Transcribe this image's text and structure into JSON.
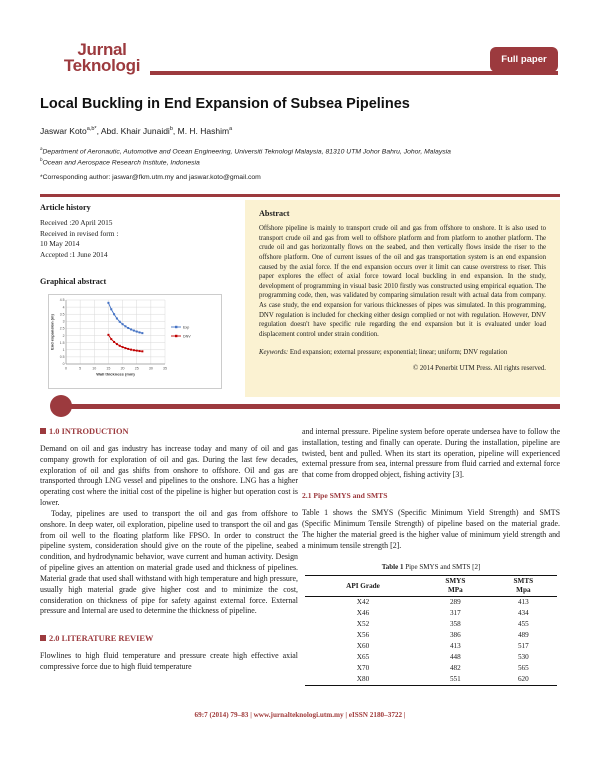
{
  "header": {
    "journal_line1": "Jurnal",
    "journal_line2": "Teknologi",
    "badge": "Full paper"
  },
  "title": "Local Buckling in End Expansion of Subsea Pipelines",
  "author_line": [
    {
      "t": "Jaswar Koto"
    },
    {
      "sup": "a,b*"
    },
    {
      "t": ", Abd. Khair Junaidi"
    },
    {
      "sup": "b"
    },
    {
      "t": ", M. H. Hashim"
    },
    {
      "sup": "a"
    }
  ],
  "affiliations": [
    {
      "sup": "a",
      "t": "Department of Aeronautic, Automotive and Ocean Engineering, Universiti Teknologi Malaysia, 81310 UTM Johor Bahru, Johor, Malaysia"
    },
    {
      "sup": "b",
      "t": "Ocean and Aerospace Research Institute, Indonesia"
    }
  ],
  "corresponding": "*Corresponding author: jaswar@fkm.utm.my and jaswar.koto@gmail.com",
  "article_history": {
    "heading": "Article history",
    "lines": [
      "Received :20 April 2015",
      "Received in revised form :",
      "10 May 2014",
      "Accepted :1 June 2014"
    ]
  },
  "graphical_abstract_heading": "Graphical abstract",
  "abstract": {
    "heading": "Abstract",
    "text": "Offshore pipeline is mainly to transport crude oil and gas from offshore to onshore. It is also used to transport crude oil and gas from well to offshore platform and from platform to another platform. The crude oil and gas horizontally flows on the seabed, and then vertically flows inside the riser to the offshore platform. One of current issues of the oil and gas transportation system is an end expansion caused by the axial force. If the end expansion occurs over it limit can cause overstress to riser. This paper explores the effect of axial force toward local buckling in end expansion. In the study, development of programming in visual basic 2010 firstly was constructed using empirical equation. The programming code, then, was validated by comparing simulation result with actual data from company. As case study, the end expansion for various thicknesses of pipes was simulated. In this programming, DNV regulation is included for checking either design complied or not with regulation. However, DNV regulation doesn't have specific rule regarding the end expansion but it is evaluated under load displacement control under strain condition.",
    "keywords_label": "Keywords:",
    "keywords_text": " End expansion; external pressure; exponential; linear; uniform; DNV regulation",
    "copyright": "© 2014 Penerbit UTM Press. All rights reserved."
  },
  "sections": {
    "intro_heading": "1.0  INTRODUCTION",
    "intro_p1": "Demand on oil and gas industry has increase today and many of oil and gas company growth for exploration of oil and gas. During the last few decades, exploration of oil and gas shifts from onshore to offshore. Oil and gas are transported through LNG vessel and pipelines to the onshore. LNG has a higher operating cost where the initial cost of the pipeline is higher but operation cost is lower.",
    "intro_p2": "Today, pipelines are used to transport the oil and gas from offshore to onshore. In deep water, oil exploration, pipeline used to transport the oil and gas from oil well to the floating platform like FPSO. In order to construct the pipeline system, consideration should give on the route of the pipeline, seabed condition, and hydrodynamic behavior, wave current and human activity. Design of pipeline gives an attention on material grade used and thickness of pipelines. Material grade that used shall withstand with high temperature and high pressure, usually high material grade give higher cost and to minimize the cost, consideration on thickness of pipe for safety against external force. External pressure and Internal are used to determine the thickness of pipeline.",
    "lit_heading": "2.0  LITERATURE REVIEW",
    "lit_p": "Flowlines to high fluid temperature and pressure create high effective axial compressive force due to high fluid temperature",
    "right_p": "and internal pressure. Pipeline system before operate undersea have to follow the installation, testing and finally can operate. During the installation, pipeline are twisted, bent and pulled. When its start its operation, pipeline will experienced external pressure from sea, internal pressure from fluid carried and external force that come from dropped object, fishing activity [3].",
    "sub_heading": "2.1  Pipe SMYS and SMTS",
    "table_intro": "Table 1 shows the SMYS (Specific Minimum Yield Strength) and SMTS (Specific Minimum Tensile Strength) of pipeline based on the material grade. The higher the material greed is the higher value of minimum yield strength and a minimum tensile strength [2]."
  },
  "table1": {
    "caption_bold": "Table 1",
    "caption_rest": "  Pipe SMYS and SMTS [2]",
    "columns": [
      {
        "l1": "API Grade",
        "l2": ""
      },
      {
        "l1": "SMYS",
        "l2": "MPa"
      },
      {
        "l1": "SMTS",
        "l2": "Mpa"
      }
    ],
    "rows": [
      [
        "X42",
        "289",
        "413"
      ],
      [
        "X46",
        "317",
        "434"
      ],
      [
        "X52",
        "358",
        "455"
      ],
      [
        "X56",
        "386",
        "489"
      ],
      [
        "X60",
        "413",
        "517"
      ],
      [
        "X65",
        "448",
        "530"
      ],
      [
        "X70",
        "482",
        "565"
      ],
      [
        "X80",
        "551",
        "620"
      ]
    ]
  },
  "footer": "69:7 (2014) 79–83 | www.jurnalteknologi.utm.my | eISSN 2180–3722 |",
  "colors": {
    "brand": "#9C3A3E",
    "abstract_bg": "#FBF2D2",
    "series_blue": "#4472C4",
    "series_red": "#C00000"
  },
  "chart_data": {
    "type": "line",
    "x": [
      15,
      16,
      17,
      18,
      19,
      20,
      21,
      22,
      23,
      24,
      25,
      26,
      27
    ],
    "series": [
      {
        "name": "Exp",
        "color": "#4472C4",
        "values": [
          4.3,
          3.85,
          3.5,
          3.2,
          2.97,
          2.8,
          2.65,
          2.53,
          2.43,
          2.35,
          2.28,
          2.22,
          2.17
        ]
      },
      {
        "name": "DNV",
        "color": "#C00000",
        "values": [
          2.05,
          1.75,
          1.55,
          1.4,
          1.28,
          1.19,
          1.12,
          1.06,
          1.01,
          0.97,
          0.94,
          0.91,
          0.89
        ]
      }
    ],
    "xlabel": "Wall thickness (mm)",
    "ylabel": "End expansion (m)",
    "xlim": [
      0,
      35
    ],
    "xstep": 5,
    "ylim": [
      0,
      4.5
    ],
    "ystep": 0.5,
    "grid": true,
    "legend_position": "right"
  }
}
